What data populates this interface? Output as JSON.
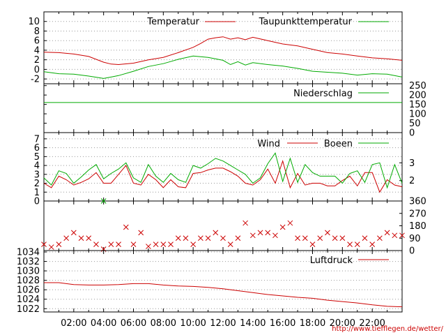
{
  "colors": {
    "red": "#cc0000",
    "green": "#00aa00",
    "grid": "#999999",
    "frame": "#000000"
  },
  "time_labels": [
    "02:00",
    "04:00",
    "06:00",
    "08:00",
    "10:00",
    "12:00",
    "14:00",
    "16:00",
    "18:00",
    "20:00",
    "22:00"
  ],
  "credit": "http://www.tiefflegen.de/wetter/",
  "chart_data": [
    {
      "type": "line",
      "panel": "temperature",
      "x_unit": "hour",
      "xlim": [
        0,
        24
      ],
      "ylim": [
        -3,
        12
      ],
      "y_ticks": [
        "10",
        "8",
        "6",
        "4",
        "2",
        "0",
        "-2"
      ],
      "y_tick_values": [
        10,
        8,
        6,
        4,
        2,
        0,
        -2
      ],
      "grid": true,
      "legend_position": "top-right",
      "series": [
        {
          "name": "Temperatur",
          "color": "#cc0000",
          "x": [
            0,
            1,
            2,
            3,
            4,
            4.5,
            5,
            6,
            7,
            8,
            9,
            10,
            10.5,
            11,
            11.5,
            12,
            12.5,
            13,
            13.5,
            14,
            15,
            16,
            17,
            18,
            19,
            20,
            21,
            22,
            23,
            24
          ],
          "y": [
            3.6,
            3.5,
            3.2,
            2.7,
            1.5,
            1.1,
            1.0,
            1.3,
            2.0,
            2.5,
            3.5,
            4.6,
            5.4,
            6.3,
            6.6,
            6.8,
            6.3,
            6.6,
            6.2,
            6.7,
            6.0,
            5.3,
            4.9,
            4.2,
            3.5,
            3.2,
            2.8,
            2.4,
            2.2,
            1.9
          ]
        },
        {
          "name": "Taupunkttemperatur",
          "color": "#00aa00",
          "x": [
            0,
            1,
            2,
            3,
            4,
            4.5,
            5,
            6,
            7,
            8,
            9,
            10,
            11,
            12,
            12.5,
            13,
            13.5,
            14,
            15,
            16,
            17,
            18,
            19,
            20,
            21,
            22,
            23,
            24
          ],
          "y": [
            -0.5,
            -0.9,
            -1.0,
            -1.4,
            -1.9,
            -1.6,
            -1.3,
            -0.4,
            0.6,
            1.2,
            2.1,
            2.8,
            2.5,
            1.9,
            1.0,
            1.6,
            0.9,
            1.4,
            1.0,
            0.7,
            0.2,
            -0.4,
            -0.6,
            -0.8,
            -1.2,
            -0.9,
            -1.0,
            -1.6
          ]
        }
      ]
    },
    {
      "type": "line",
      "panel": "precipitation",
      "x_unit": "hour",
      "xlim": [
        0,
        24
      ],
      "ylim": [
        0,
        260
      ],
      "y_ticks": [
        "250",
        "200",
        "150",
        "100",
        "50",
        "0"
      ],
      "y_tick_values": [
        250,
        200,
        150,
        100,
        50,
        0
      ],
      "grid": false,
      "legend_position": "top-right",
      "series": [
        {
          "name": "Niederschlag",
          "color": "#00aa00",
          "x": [
            0,
            24
          ],
          "y": [
            160,
            160
          ]
        }
      ]
    },
    {
      "type": "line",
      "panel": "wind",
      "x_unit": "hour",
      "xlim": [
        0,
        24
      ],
      "ylim": [
        0,
        7.7
      ],
      "y_ticks": [
        "7",
        "6",
        "5",
        "4",
        "3",
        "2",
        "1",
        "0"
      ],
      "y_tick_values": [
        7,
        6,
        5,
        4,
        3,
        2,
        1,
        0
      ],
      "right_ticks": [
        "3",
        "2"
      ],
      "right_tick_values": [
        4.3,
        2.3
      ],
      "grid": true,
      "legend_position": "top-right",
      "series": [
        {
          "name": "Wind",
          "color": "#cc0000",
          "x": [
            0,
            0.5,
            1,
            1.5,
            2,
            2.5,
            3,
            3.5,
            4,
            4.5,
            5,
            5.5,
            6,
            6.5,
            7,
            7.5,
            8,
            8.5,
            9,
            9.5,
            10,
            10.5,
            11,
            11.5,
            12,
            12.5,
            13,
            13.5,
            14,
            14.5,
            15,
            15.5,
            16,
            16.5,
            17,
            17.5,
            18,
            18.5,
            19,
            19.5,
            20,
            20.5,
            21,
            21.5,
            22,
            22.5,
            23,
            23.5,
            24
          ],
          "y": [
            2.0,
            1.5,
            2.8,
            2.4,
            1.8,
            2.1,
            2.5,
            3.2,
            2.0,
            2.0,
            3.0,
            4.0,
            2.0,
            1.8,
            3.0,
            2.4,
            1.5,
            2.4,
            1.6,
            1.5,
            3.1,
            3.2,
            3.5,
            3.7,
            3.7,
            3.3,
            2.8,
            2.0,
            1.8,
            2.4,
            3.6,
            2.0,
            4.5,
            1.5,
            3.1,
            1.8,
            2.0,
            2.0,
            1.7,
            1.7,
            2.3,
            2.8,
            1.7,
            3.2,
            3.2,
            1.0,
            2.4,
            1.8,
            1.6
          ]
        },
        {
          "name": "Boeen",
          "color": "#00aa00",
          "x": [
            0,
            0.5,
            1,
            1.5,
            2,
            2.5,
            3,
            3.5,
            4,
            4.5,
            5,
            5.5,
            6,
            6.5,
            7,
            7.5,
            8,
            8.5,
            9,
            9.5,
            10,
            10.5,
            11,
            11.5,
            12,
            12.5,
            13,
            13.5,
            14,
            14.5,
            15,
            15.5,
            16,
            16.5,
            17,
            17.5,
            18,
            18.5,
            19,
            19.5,
            20,
            20.5,
            21,
            21.5,
            22,
            22.5,
            23,
            23.5,
            24
          ],
          "y": [
            2.6,
            1.8,
            3.4,
            3.1,
            2.0,
            2.7,
            3.5,
            4.1,
            2.5,
            3.1,
            3.6,
            4.3,
            2.6,
            2.1,
            4.1,
            2.8,
            2.1,
            3.1,
            2.4,
            2.1,
            4.0,
            3.7,
            4.2,
            4.8,
            4.5,
            4.0,
            3.5,
            3.0,
            2.0,
            2.6,
            4.2,
            5.4,
            2.2,
            4.8,
            2.1,
            4.1,
            3.2,
            2.8,
            2.8,
            2.8,
            2.0,
            3.1,
            3.4,
            2.1,
            4.1,
            4.3,
            1.5,
            4.1,
            2.0
          ]
        }
      ]
    },
    {
      "type": "scatter",
      "panel": "wind-direction",
      "x_unit": "hour",
      "xlim": [
        0,
        24
      ],
      "ylim": [
        0,
        360
      ],
      "right_ticks": [
        "360",
        "270",
        "180",
        "90",
        "0"
      ],
      "right_tick_values": [
        360,
        270,
        180,
        90,
        0
      ],
      "grid": false,
      "series": [
        {
          "color": "#cc0000",
          "x": [
            0,
            0.5,
            1,
            1.5,
            2,
            2.5,
            3,
            3.5,
            4,
            4.5,
            5,
            5.5,
            6,
            6.5,
            7,
            7.5,
            8,
            8.5,
            9,
            9.5,
            10,
            10.5,
            11,
            11.5,
            12,
            12.5,
            13,
            13.5,
            14,
            14.5,
            15,
            15.5,
            16,
            16.5,
            17,
            17.5,
            18,
            18.5,
            19,
            19.5,
            20,
            20.5,
            21,
            21.5,
            22,
            22.5,
            23,
            23.5,
            24
          ],
          "y": [
            45,
            25,
            45,
            90,
            130,
            90,
            90,
            45,
            10,
            45,
            45,
            170,
            45,
            130,
            30,
            45,
            45,
            45,
            90,
            90,
            45,
            90,
            90,
            130,
            90,
            45,
            90,
            200,
            110,
            130,
            130,
            110,
            170,
            200,
            90,
            90,
            45,
            90,
            130,
            90,
            90,
            45,
            45,
            90,
            45,
            90,
            130,
            110,
            110
          ]
        },
        {
          "color": "#00aa00",
          "x": [
            4
          ],
          "y": [
            360
          ]
        }
      ]
    },
    {
      "type": "line",
      "panel": "pressure",
      "x_unit": "hour",
      "xlim": [
        0,
        24
      ],
      "ylim": [
        1021.3,
        1034.3
      ],
      "y_ticks": [
        "1034",
        "1032",
        "1030",
        "1028",
        "1026",
        "1024",
        "1022"
      ],
      "y_tick_values": [
        1034,
        1032,
        1030,
        1028,
        1026,
        1024,
        1022
      ],
      "grid": true,
      "legend_position": "top-right",
      "series": [
        {
          "name": "Luftdruck",
          "color": "#cc0000",
          "x": [
            0,
            1,
            2,
            3,
            4,
            5,
            6,
            7,
            8,
            9,
            10,
            11,
            12,
            13,
            14,
            15,
            16,
            17,
            18,
            19,
            20,
            21,
            22,
            23,
            24
          ],
          "y": [
            1027.5,
            1027.5,
            1027.1,
            1027.0,
            1027.0,
            1027.1,
            1027.3,
            1027.3,
            1027.0,
            1026.8,
            1026.7,
            1026.5,
            1026.2,
            1025.8,
            1025.4,
            1025.0,
            1024.7,
            1024.4,
            1024.2,
            1023.8,
            1023.5,
            1023.2,
            1022.8,
            1022.5,
            1022.4
          ]
        }
      ]
    }
  ]
}
